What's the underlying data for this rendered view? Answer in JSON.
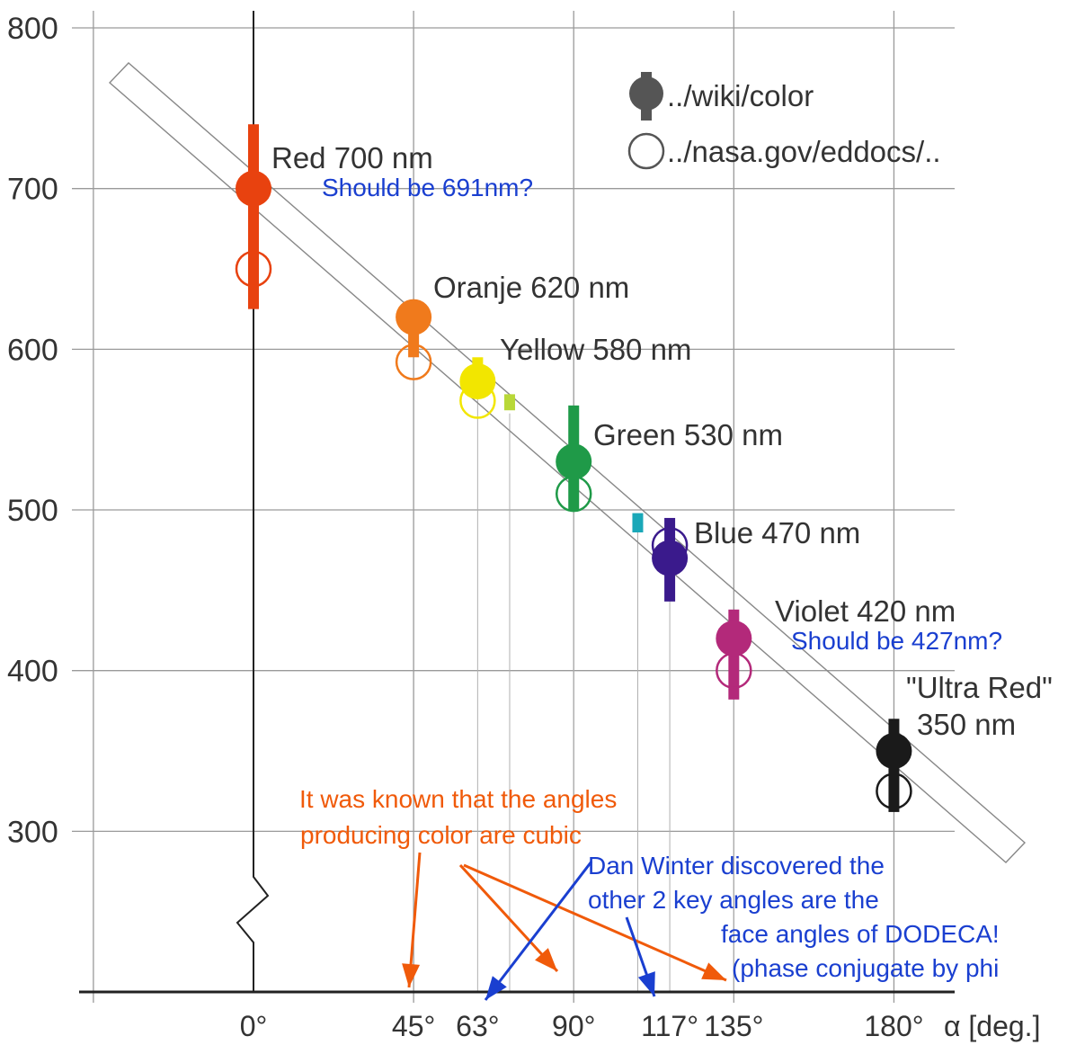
{
  "chart_data": {
    "type": "scatter",
    "xlabel": "α [deg.]",
    "ylim": [
      200,
      800
    ],
    "xlim": [
      -20,
      200
    ],
    "y_ticks": [
      "300",
      "400",
      "500",
      "600",
      "700",
      "800"
    ],
    "x_ticks": [
      {
        "x": 0,
        "label": "0°"
      },
      {
        "x": 45,
        "label": "45°"
      },
      {
        "x": 63,
        "label": "63°"
      },
      {
        "x": 90,
        "label": "90°"
      },
      {
        "x": 117,
        "label": "117°"
      },
      {
        "x": 135,
        "label": "135°"
      },
      {
        "x": 180,
        "label": "180°"
      }
    ],
    "grid": true,
    "colors_by_point": true,
    "legend": {
      "placement": "top-right",
      "entries": [
        {
          "marker": "filled-circle-with-bar",
          "label": "../wiki/color"
        },
        {
          "marker": "open-circle",
          "label": "../nasa.gov/eddocs/.."
        }
      ]
    },
    "series": [
      {
        "marker": "filled-circle-with-bar",
        "points": [
          {
            "x": 0,
            "y": 700,
            "range": [
              625,
              740
            ],
            "label": "Red 700 nm",
            "color": "#e8420f"
          },
          {
            "x": 45,
            "y": 620,
            "range": [
              595,
              625
            ],
            "label": "Oranje 620 nm",
            "color": "#f07a1c"
          },
          {
            "x": 63,
            "y": 580,
            "range": [
              570,
              595
            ],
            "label": "Yellow 580 nm",
            "color": "#f2e600"
          },
          {
            "x": 90,
            "y": 530,
            "range": [
              500,
              565
            ],
            "label": "Green 530 nm",
            "color": "#1f9a48"
          },
          {
            "x": 117,
            "y": 470,
            "range": [
              443,
              495
            ],
            "label": "Blue 470 nm",
            "color": "#3a1a8c"
          },
          {
            "x": 135,
            "y": 420,
            "range": [
              382,
              438
            ],
            "label": "Violet 420 nm",
            "color": "#b3297a"
          },
          {
            "x": 180,
            "y": 350,
            "range": [
              312,
              370
            ],
            "label_lines": [
              "\"Ultra Red\"",
              "350 nm"
            ],
            "color": "#1a1a1a"
          }
        ]
      },
      {
        "marker": "open-circle",
        "points": [
          {
            "x": 0,
            "y": 650,
            "color": "#e8420f"
          },
          {
            "x": 45,
            "y": 592,
            "color": "#f07a1c"
          },
          {
            "x": 63,
            "y": 568,
            "color": "#f2e600"
          },
          {
            "x": 90,
            "y": 510,
            "color": "#1f9a48"
          },
          {
            "x": 117,
            "y": 478,
            "color": "#3a1a8c"
          },
          {
            "x": 135,
            "y": 400,
            "color": "#b3297a"
          },
          {
            "x": 180,
            "y": 325,
            "color": "#1a1a1a"
          }
        ]
      }
    ],
    "small_bars": [
      {
        "x": 72,
        "range": [
          562,
          572
        ],
        "color": "#b8d838"
      },
      {
        "x": 108,
        "range": [
          486,
          498
        ],
        "color": "#1aa8b8"
      }
    ],
    "annotations": {
      "should_red": {
        "text": "Should be 691nm?",
        "color": "#1a3fd0"
      },
      "should_violet": {
        "text": "Should be 427nm?",
        "color": "#1a3fd0"
      },
      "orange_note": {
        "lines": [
          "It was known that the angles",
          "producing color are cubic"
        ],
        "color": "#f05a0a"
      },
      "blue_note": {
        "lines": [
          "Dan Winter discovered the",
          "other 2 key angles are the",
          "face angles of DODECA!",
          "(phase conjugate by phi"
        ],
        "color": "#1a3fd0"
      }
    }
  }
}
